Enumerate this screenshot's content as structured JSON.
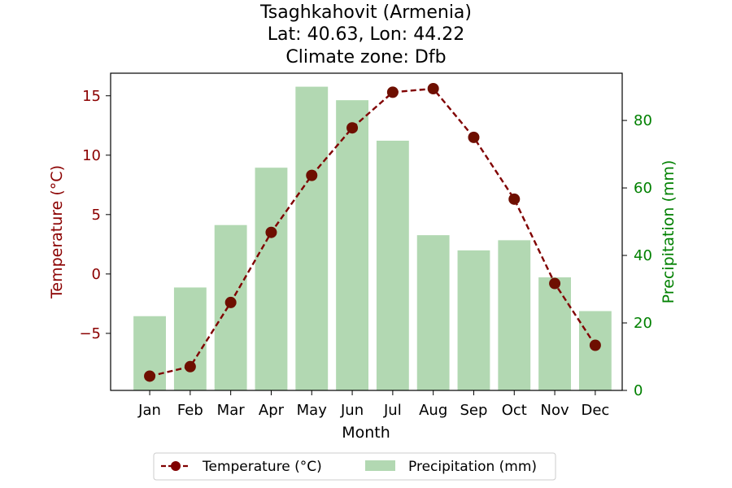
{
  "chart_data": {
    "type": "bar+line",
    "title_lines": [
      "Tsaghkahovit (Armenia)",
      "Lat: 40.63, Lon: 44.22",
      "Climate zone: Dfb"
    ],
    "xlabel": "Month",
    "ylabel_left": "Temperature (°C)",
    "ylabel_right": "Precipitation (mm)",
    "categories": [
      "Jan",
      "Feb",
      "Mar",
      "Apr",
      "May",
      "Jun",
      "Jul",
      "Aug",
      "Sep",
      "Oct",
      "Nov",
      "Dec"
    ],
    "temperature": {
      "name": "Temperature (°C)",
      "color": "#800000",
      "values": [
        -8.6,
        -7.8,
        -2.4,
        3.5,
        8.3,
        12.3,
        15.3,
        15.6,
        11.5,
        6.3,
        -0.8,
        -6.0
      ],
      "style": "dashed line with circle markers"
    },
    "precipitation": {
      "name": "Precipitation (mm)",
      "color": "#b2d8b2",
      "values": [
        22,
        30.5,
        49,
        66,
        90,
        86,
        74,
        46,
        41.5,
        44.5,
        33.5,
        23.5
      ]
    },
    "ylim_left": [
      -9.8,
      16.9
    ],
    "ylim_right": [
      0,
      94
    ],
    "yticks_left": [
      -5,
      0,
      5,
      10,
      15
    ],
    "yticks_right": [
      0,
      20,
      40,
      60,
      80
    ],
    "left_axis_color": "#8b0000",
    "right_axis_color": "#008000",
    "legend_position": "bottom-center",
    "grid": false
  }
}
